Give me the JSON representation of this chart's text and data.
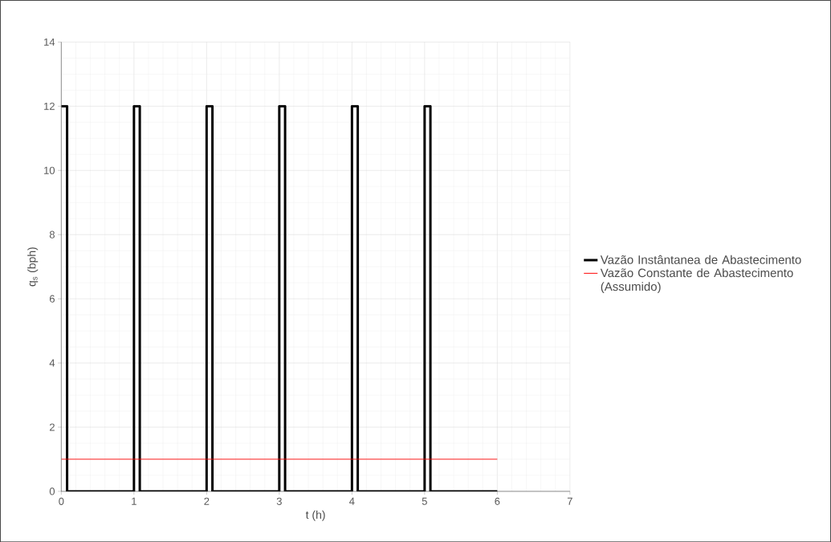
{
  "chart_data": {
    "type": "line",
    "xlabel": "t (h)",
    "ylabel": "q$_{s}$ (bph)",
    "xlim": [
      0,
      7
    ],
    "ylim": [
      0,
      14
    ],
    "xticks": [
      0,
      1,
      2,
      3,
      4,
      5,
      6,
      7
    ],
    "yticks": [
      0,
      2,
      4,
      6,
      8,
      10,
      12,
      14
    ],
    "grid": true,
    "legend": "right",
    "marker": "none",
    "line_style": "solid",
    "series": [
      {
        "name": "Vazão Instântanea de Abastecimento",
        "color": "#000000",
        "x": [
          0,
          0.08,
          0.08,
          1,
          1,
          1.08,
          1.08,
          2,
          2,
          2.08,
          2.08,
          3,
          3,
          3.08,
          3.08,
          4,
          4,
          4.08,
          4.08,
          5,
          5,
          5.08,
          5.08,
          6
        ],
        "values": [
          12,
          12,
          0,
          0,
          12,
          12,
          0,
          0,
          12,
          12,
          0,
          0,
          12,
          12,
          0,
          0,
          12,
          12,
          0,
          0,
          12,
          12,
          0,
          0
        ]
      },
      {
        "name": "Vazão Constante de Abastecimento (Assumido)",
        "color": "#ff0000",
        "x": [
          0,
          6
        ],
        "values": [
          1,
          1
        ]
      }
    ]
  }
}
